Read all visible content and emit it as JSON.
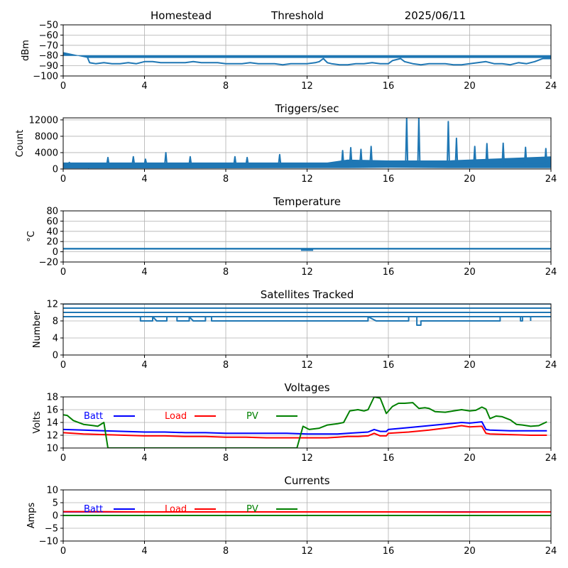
{
  "header": {
    "site": "Homestead",
    "mode": "Threshold",
    "date": "2025/06/11"
  },
  "chart_data": [
    {
      "type": "line",
      "title": "",
      "ylabel": "dBm",
      "xlim": [
        0,
        24
      ],
      "ylim": [
        -100,
        -50
      ],
      "xticks": [
        0,
        4,
        8,
        12,
        16,
        20,
        24
      ],
      "yticks": [
        -100,
        -90,
        -80,
        -70,
        -60,
        -50
      ],
      "grid": true,
      "series": [
        {
          "color": "#1f77b4",
          "style": "band",
          "x": [
            0,
            1.2,
            24
          ],
          "values": [
            -80,
            -80,
            -80
          ],
          "values2": [
            -77,
            -82,
            -82
          ]
        },
        {
          "color": "#1f77b4",
          "x": [
            1.2,
            1.3,
            1.6,
            2.0,
            2.4,
            2.8,
            3.2,
            3.6,
            4.0,
            4.4,
            4.8,
            5.2,
            5.6,
            6.0,
            6.4,
            6.8,
            7.2,
            7.6,
            8.0,
            8.4,
            8.8,
            9.2,
            9.6,
            10.0,
            10.4,
            10.8,
            11.2,
            11.6,
            12.0,
            12.4,
            12.6,
            12.8,
            13.0,
            13.2,
            13.6,
            14.0,
            14.4,
            14.8,
            15.2,
            15.6,
            16.0,
            16.2,
            16.6,
            16.8,
            17.2,
            17.6,
            18.0,
            18.4,
            18.8,
            19.2,
            19.6,
            20.0,
            20.4,
            20.8,
            21.2,
            21.6,
            22.0,
            22.4,
            22.8,
            23.2,
            23.6,
            24.0
          ],
          "values": [
            -82,
            -87,
            -88,
            -87,
            -88,
            -88,
            -87,
            -88,
            -86,
            -86,
            -87,
            -87,
            -87,
            -87,
            -86,
            -87,
            -87,
            -87,
            -88,
            -88,
            -88,
            -87,
            -88,
            -88,
            -88,
            -89,
            -88,
            -88,
            -88,
            -87,
            -86,
            -83,
            -87,
            -88,
            -89,
            -89,
            -88,
            -88,
            -87,
            -88,
            -88,
            -85,
            -83,
            -86,
            -88,
            -89,
            -88,
            -88,
            -88,
            -89,
            -89,
            -88,
            -87,
            -86,
            -88,
            -88,
            -89,
            -87,
            -88,
            -86,
            -83,
            -83
          ]
        }
      ]
    },
    {
      "type": "line",
      "title": "Triggers/sec",
      "ylabel": "Count",
      "xlim": [
        0,
        24
      ],
      "ylim": [
        0,
        12500
      ],
      "xticks": [
        0,
        4,
        8,
        12,
        16,
        20,
        24
      ],
      "yticks": [
        0,
        4000,
        8000,
        12000
      ],
      "grid": true,
      "series": [
        {
          "color": "#1f77b4",
          "style": "band",
          "x": [
            0,
            13,
            14,
            16,
            18.9,
            24
          ],
          "values": [
            200,
            300,
            300,
            400,
            300,
            300
          ],
          "values2": [
            1500,
            1500,
            2200,
            2000,
            2000,
            3000
          ]
        },
        {
          "color": "#1f77b4",
          "x": [
            0,
            0.25,
            0.3,
            0.4,
            0.5,
            1.2,
            1.25,
            1.3,
            2.15,
            2.2,
            2.25,
            3.4,
            3.45,
            3.5,
            4.0,
            4.05,
            4.1,
            5.0,
            5.05,
            5.1,
            6.2,
            6.25,
            6.3,
            8.4,
            8.45,
            8.5,
            9.0,
            9.05,
            9.1,
            10.6,
            10.65,
            10.7,
            13.7,
            13.75,
            13.8,
            14.1,
            14.15,
            14.2,
            14.6,
            14.65,
            14.7,
            15.1,
            15.15,
            15.2,
            16.85,
            16.9,
            16.95,
            17.45,
            17.5,
            17.55,
            18.9,
            18.95,
            19.0,
            19.3,
            19.35,
            19.4,
            20.2,
            20.25,
            20.3,
            20.8,
            20.85,
            20.9,
            21.6,
            21.65,
            21.7,
            22.7,
            22.75,
            22.8,
            23.7,
            23.75,
            23.8,
            24.0
          ],
          "values": [
            1000,
            1000,
            1600,
            1000,
            1200,
            1200,
            300,
            1200,
            1200,
            2800,
            1200,
            1200,
            3000,
            1200,
            1200,
            2400,
            1200,
            1200,
            4000,
            1200,
            1200,
            3000,
            1200,
            1200,
            3000,
            1200,
            1200,
            2800,
            1200,
            1200,
            3500,
            1200,
            1200,
            4500,
            1200,
            1200,
            5200,
            1200,
            1200,
            4800,
            1200,
            1200,
            5500,
            1200,
            1200,
            12500,
            1200,
            1200,
            12500,
            1200,
            1200,
            11600,
            1200,
            1200,
            7500,
            1200,
            1200,
            5500,
            1200,
            1200,
            6200,
            1200,
            1200,
            6300,
            1200,
            1200,
            5300,
            1200,
            1200,
            5000,
            1200,
            1200
          ]
        }
      ]
    },
    {
      "type": "line",
      "title": "Temperature",
      "ylabel": "°C",
      "xlim": [
        0,
        24
      ],
      "ylim": [
        -20,
        80
      ],
      "xticks": [
        0,
        4,
        8,
        12,
        16,
        20,
        24
      ],
      "yticks": [
        -20,
        0,
        20,
        40,
        60,
        80
      ],
      "grid": true,
      "series": [
        {
          "color": "#1f77b4",
          "style": "band",
          "x": [
            0,
            24
          ],
          "values": [
            5,
            5
          ],
          "values2": [
            7,
            7
          ]
        },
        {
          "color": "#1f77b4",
          "x": [
            11.7,
            12.3
          ],
          "values": [
            3,
            3
          ]
        }
      ]
    },
    {
      "type": "line",
      "title": "Satellites Tracked",
      "ylabel": "Number",
      "xlim": [
        0,
        24
      ],
      "ylim": [
        0,
        12
      ],
      "xticks": [
        0,
        4,
        8,
        12,
        16,
        20,
        24
      ],
      "yticks": [
        0,
        4,
        8,
        12
      ],
      "grid": true,
      "series": [
        {
          "color": "#1f77b4",
          "x": [
            0,
            24
          ],
          "values": [
            12,
            12
          ]
        },
        {
          "color": "#1f77b4",
          "x": [
            0,
            24
          ],
          "values": [
            11,
            11
          ]
        },
        {
          "color": "#1f77b4",
          "x": [
            0,
            24
          ],
          "values": [
            10,
            10
          ]
        },
        {
          "color": "#1f77b4",
          "x": [
            0,
            24
          ],
          "values": [
            9,
            9
          ]
        },
        {
          "color": "#1f77b4",
          "x": [
            3.6,
            3.8,
            3.8,
            4.4,
            4.4,
            4.6,
            5.1,
            5.1,
            5.6,
            5.6,
            6.2,
            6.2,
            6.4,
            7.0,
            7.0,
            7.3,
            7.3,
            15.0,
            15.0,
            15.4,
            17.0,
            17.0,
            17.4,
            17.4,
            17.6,
            17.6,
            17.8,
            21.5,
            21.5,
            22.5,
            22.5,
            22.6,
            22.6,
            23.0,
            23.0
          ],
          "values": [
            9,
            9,
            8,
            8,
            9,
            8,
            8,
            9,
            9,
            8,
            8,
            9,
            8,
            8,
            9,
            9,
            8,
            8,
            9,
            8,
            8,
            9,
            9,
            7,
            7,
            8,
            8,
            8,
            9,
            9,
            8,
            8,
            9,
            9,
            8
          ]
        }
      ]
    },
    {
      "type": "line",
      "title": "Voltages",
      "ylabel": "Volts",
      "xlim": [
        0,
        24
      ],
      "ylim": [
        10,
        18
      ],
      "xticks": [
        0,
        4,
        8,
        12,
        16,
        20,
        24
      ],
      "yticks": [
        10,
        12,
        14,
        16,
        18
      ],
      "grid": true,
      "legend": "top-left",
      "series": [
        {
          "name": "Batt",
          "color": "#0000ff",
          "x": [
            0,
            1,
            2,
            3,
            4,
            5,
            6,
            7,
            8,
            9,
            10,
            11,
            12,
            13,
            13.5,
            14,
            14.5,
            15,
            15.3,
            15.6,
            15.9,
            16,
            17,
            18,
            19,
            19.6,
            20,
            20.6,
            20.8,
            21,
            22,
            23,
            23.8
          ],
          "values": [
            12.9,
            12.8,
            12.7,
            12.6,
            12.5,
            12.5,
            12.4,
            12.4,
            12.3,
            12.3,
            12.3,
            12.3,
            12.2,
            12.2,
            12.2,
            12.3,
            12.4,
            12.5,
            12.9,
            12.6,
            12.6,
            12.9,
            13.2,
            13.5,
            13.8,
            14.0,
            13.9,
            14.1,
            12.9,
            12.8,
            12.7,
            12.7,
            12.7
          ]
        },
        {
          "name": "Load",
          "color": "#ff0000",
          "x": [
            0,
            1,
            2,
            3,
            4,
            5,
            6,
            7,
            8,
            9,
            10,
            11,
            12,
            13,
            13.5,
            14,
            14.5,
            15,
            15.3,
            15.6,
            15.9,
            16,
            17,
            18,
            19,
            19.6,
            20,
            20.6,
            20.8,
            21,
            22,
            23,
            23.8
          ],
          "values": [
            12.4,
            12.2,
            12.1,
            12.0,
            11.9,
            11.9,
            11.8,
            11.8,
            11.7,
            11.7,
            11.6,
            11.6,
            11.6,
            11.6,
            11.7,
            11.8,
            11.8,
            11.9,
            12.3,
            11.9,
            11.9,
            12.3,
            12.5,
            12.8,
            13.2,
            13.5,
            13.3,
            13.4,
            12.3,
            12.2,
            12.1,
            12.0,
            12.0
          ]
        },
        {
          "name": "PV",
          "color": "#008000",
          "x": [
            0,
            0.2,
            0.5,
            1,
            1.5,
            1.7,
            2.0,
            2.2,
            11.5,
            11.8,
            12.1,
            12.6,
            13.0,
            13.5,
            13.8,
            14.1,
            14.5,
            14.8,
            15.0,
            15.3,
            15.6,
            15.9,
            16.2,
            16.5,
            16.8,
            17.2,
            17.5,
            17.8,
            18.0,
            18.3,
            18.8,
            19.2,
            19.6,
            20.0,
            20.3,
            20.6,
            20.8,
            21.0,
            21.3,
            21.6,
            22.0,
            22.3,
            22.6,
            23.0,
            23.4,
            23.8
          ],
          "values": [
            15.2,
            15.1,
            14.3,
            13.7,
            13.5,
            13.4,
            14.0,
            10.0,
            10.0,
            13.4,
            12.9,
            13.1,
            13.6,
            13.8,
            14.0,
            15.8,
            16.0,
            15.8,
            16.0,
            18.0,
            17.8,
            15.4,
            16.5,
            17.0,
            17.0,
            17.1,
            16.2,
            16.3,
            16.2,
            15.7,
            15.6,
            15.8,
            16.0,
            15.8,
            15.9,
            16.4,
            16.1,
            14.6,
            15.0,
            14.9,
            14.4,
            13.7,
            13.6,
            13.4,
            13.5,
            14.1
          ]
        }
      ]
    },
    {
      "type": "line",
      "title": "Currents",
      "ylabel": "Amps",
      "xlim": [
        0,
        24
      ],
      "ylim": [
        -10,
        10
      ],
      "xticks": [
        0,
        4,
        8,
        12,
        16,
        20,
        24
      ],
      "yticks": [
        -10,
        -5,
        0,
        5,
        10
      ],
      "grid": true,
      "legend": "top-left",
      "series": [
        {
          "name": "Batt",
          "color": "#0000ff",
          "x": [
            0,
            24
          ],
          "values": [
            1.4,
            1.4
          ]
        },
        {
          "name": "Load",
          "color": "#ff0000",
          "x": [
            0,
            1,
            4,
            8,
            12,
            16,
            20,
            24
          ],
          "values": [
            1.5,
            1.5,
            1.4,
            1.4,
            1.4,
            1.4,
            1.3,
            1.4
          ]
        },
        {
          "name": "PV",
          "color": "#008000",
          "x": [
            0,
            24
          ],
          "values": [
            0,
            0
          ]
        }
      ]
    }
  ]
}
